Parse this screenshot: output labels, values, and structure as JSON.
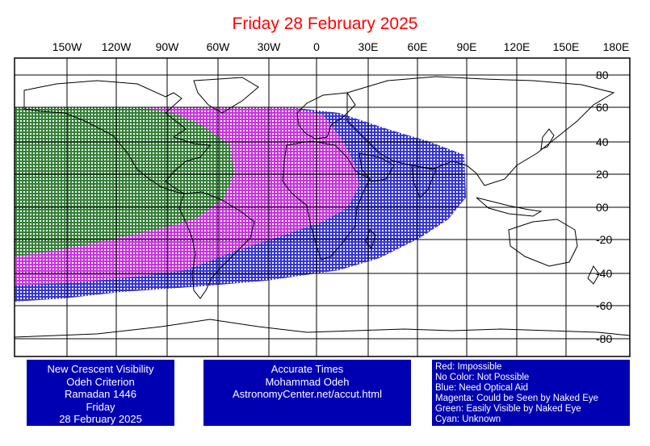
{
  "title": "Friday 28 February 2025",
  "longitude_labels": [
    "150W",
    "120W",
    "90W",
    "60W",
    "30W",
    "0",
    "30E",
    "60E",
    "90E",
    "120E",
    "150E",
    "180E"
  ],
  "latitude_labels": [
    "80",
    "60",
    "40",
    "20",
    "00",
    "-20",
    "-40",
    "-60",
    "-80"
  ],
  "colors": {
    "title": "#ff0000",
    "info_box": "#0000b3",
    "green": "#1a8c1a",
    "magenta": "#e033e0",
    "blue": "#1414cc"
  },
  "info_left": {
    "lines": [
      "New Crescent Visibility",
      "Odeh Criterion",
      "Ramadan 1446",
      "Friday",
      "28 February 2025"
    ]
  },
  "info_middle": {
    "lines": [
      "Accurate Times",
      "Mohammad Odeh",
      "AstronomyCenter.net/accut.html"
    ]
  },
  "legend": {
    "lines": [
      "Red: Impossible",
      "No Color: Not Possible",
      "Blue: Need Optical Aid",
      "Magenta: Could be Seen by Naked Eye",
      "Green: Easily Visible by Naked Eye",
      "Cyan: Unknown"
    ]
  }
}
